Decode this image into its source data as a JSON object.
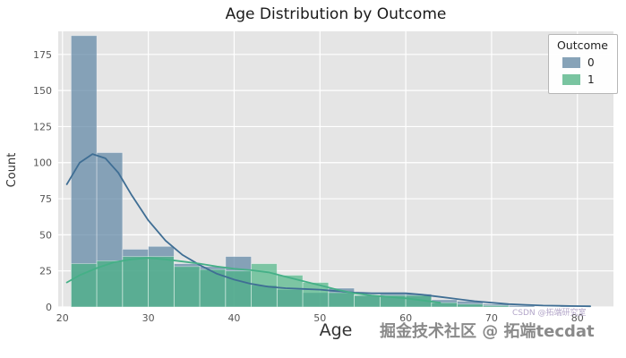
{
  "chart_data": {
    "type": "histogram",
    "title": "Age Distribution by Outcome",
    "xlabel": "Age",
    "ylabel": "Count",
    "xlim": [
      19.5,
      84.2
    ],
    "ylim": [
      0,
      191
    ],
    "xticks": [
      20,
      30,
      40,
      50,
      60,
      70,
      80
    ],
    "yticks": [
      0,
      25,
      50,
      75,
      100,
      125,
      150,
      175
    ],
    "grid": true,
    "plot_bg": "#e5e5e5",
    "grid_color": "#ffffff",
    "bin_start": 21,
    "bin_width": 3,
    "legend": {
      "title": "Outcome",
      "position": "upper right",
      "entries": [
        {
          "label": "0",
          "color": "#87a3b8"
        },
        {
          "label": "1",
          "color": "#79c4a0"
        }
      ]
    },
    "series": [
      {
        "name": "0",
        "bar_color": "rgba(95,135,165,0.72)",
        "line_color": "#3f6e94",
        "bins": [
          188,
          107,
          40,
          42,
          30,
          28,
          35,
          15,
          12,
          10,
          13,
          8,
          9,
          9,
          5,
          4,
          2,
          1,
          0,
          1
        ],
        "kde": [
          [
            20.5,
            85
          ],
          [
            22,
            100
          ],
          [
            23.5,
            106
          ],
          [
            25,
            103
          ],
          [
            26.5,
            93
          ],
          [
            28,
            78
          ],
          [
            30,
            60
          ],
          [
            32,
            46
          ],
          [
            34,
            36
          ],
          [
            36,
            29
          ],
          [
            38,
            23
          ],
          [
            40,
            19
          ],
          [
            42,
            16
          ],
          [
            44,
            14
          ],
          [
            46,
            13
          ],
          [
            48,
            12.5
          ],
          [
            50,
            12
          ],
          [
            52,
            11
          ],
          [
            54,
            10
          ],
          [
            56,
            9.5
          ],
          [
            58,
            9.5
          ],
          [
            60,
            9.5
          ],
          [
            62,
            8.5
          ],
          [
            64,
            7
          ],
          [
            66,
            5.5
          ],
          [
            68,
            4
          ],
          [
            70,
            3
          ],
          [
            72,
            2
          ],
          [
            74,
            1.5
          ],
          [
            76,
            1
          ],
          [
            78,
            0.8
          ],
          [
            80,
            0.6
          ],
          [
            81.5,
            0.5
          ]
        ]
      },
      {
        "name": "1",
        "bar_color": "rgba(68,179,127,0.65)",
        "line_color": "#45b087",
        "bins": [
          30,
          32,
          35,
          35,
          28,
          26,
          25,
          30,
          22,
          17,
          10,
          8,
          8,
          8,
          3,
          2,
          1,
          0,
          0,
          0
        ],
        "kde": [
          [
            20.5,
            17
          ],
          [
            22,
            22
          ],
          [
            24,
            27
          ],
          [
            26,
            31
          ],
          [
            28,
            33
          ],
          [
            30,
            34
          ],
          [
            32,
            33
          ],
          [
            34,
            31.5
          ],
          [
            36,
            30
          ],
          [
            38,
            28
          ],
          [
            40,
            26.5
          ],
          [
            42,
            25.5
          ],
          [
            44,
            24
          ],
          [
            46,
            21
          ],
          [
            48,
            18
          ],
          [
            50,
            15
          ],
          [
            52,
            12
          ],
          [
            54,
            9.5
          ],
          [
            56,
            8
          ],
          [
            58,
            7
          ],
          [
            60,
            6
          ],
          [
            62,
            4.5
          ],
          [
            64,
            3
          ]
        ]
      }
    ]
  },
  "watermarks": {
    "main": "掘金技术社区 @ 拓端tecdat",
    "small": "CSDN @拓端研究室"
  }
}
